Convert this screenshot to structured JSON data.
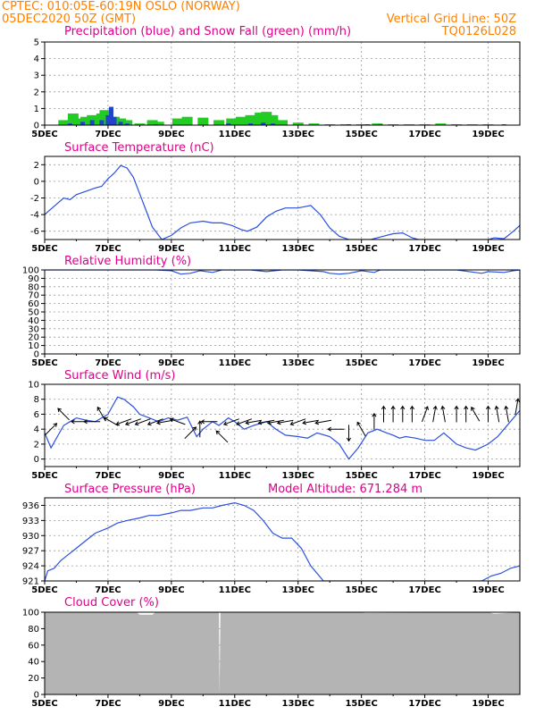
{
  "header": {
    "station": "CPTEC:  010:05E-60:19N   OSLO (NORWAY)",
    "datetime": "05DEC2020 50Z (GMT)",
    "grid_note": "Vertical Grid Line: 50Z",
    "code": "TQ0126L028"
  },
  "colors": {
    "header": "#ff8000",
    "title": "#e0008a",
    "line": "#2b4fe0",
    "snow": "#22cc22",
    "rain": "#2244cc",
    "cloud": "#b4b4b4",
    "grid": "#999999"
  },
  "chart_data": [
    {
      "id": "precip",
      "type": "bar",
      "title": "Precipitation (blue) and Snow Fall (green) (mm/h)",
      "xlim": [
        0,
        15
      ],
      "ylim": [
        0,
        5
      ],
      "yticks": [
        "0",
        "1",
        "2",
        "3",
        "4",
        "5"
      ],
      "xticks": [
        "5DEC",
        "7DEC",
        "9DEC",
        "11DEC",
        "13DEC",
        "15DEC",
        "17DEC",
        "19DEC"
      ],
      "series": [
        {
          "name": "Precipitation",
          "x": [
            0.8,
            1.2,
            1.5,
            1.8,
            2.0,
            2.1,
            2.2,
            2.4,
            2.6,
            3.5,
            5.8,
            6.5,
            6.9,
            7.2,
            9.6,
            10.2,
            10.6,
            14.5
          ],
          "values": [
            0.1,
            0.2,
            0.3,
            0.3,
            0.6,
            1.1,
            0.5,
            0.2,
            0.1,
            0.05,
            0.1,
            0.1,
            0.15,
            0.1,
            0.05,
            0.05,
            0.05,
            0.05
          ]
        },
        {
          "name": "Snow Fall",
          "x": [
            0.6,
            0.9,
            1.0,
            1.3,
            1.5,
            1.6,
            1.8,
            1.9,
            2.0,
            2.2,
            2.4,
            2.6,
            3.0,
            3.4,
            3.6,
            4.2,
            4.5,
            5.0,
            5.5,
            5.9,
            6.2,
            6.5,
            6.8,
            7.0,
            7.2,
            7.5,
            8.0,
            8.5,
            9.0,
            9.5,
            10.0,
            10.5,
            11.0,
            11.5,
            12.0,
            12.5,
            13.0,
            13.5,
            14.0
          ],
          "values": [
            0.3,
            0.7,
            0.4,
            0.5,
            0.6,
            0.3,
            0.7,
            0.9,
            0.8,
            0.5,
            0.4,
            0.3,
            0.1,
            0.3,
            0.2,
            0.4,
            0.5,
            0.45,
            0.3,
            0.4,
            0.5,
            0.6,
            0.75,
            0.8,
            0.6,
            0.3,
            0.15,
            0.1,
            0.05,
            0.05,
            0.05,
            0.1,
            0.05,
            0.05,
            0.05,
            0.1,
            0.05,
            0.05,
            0.05
          ]
        }
      ]
    },
    {
      "id": "temp",
      "type": "line",
      "title": "Surface Temperature (nC)",
      "xlim": [
        0,
        15
      ],
      "ylim": [
        -7,
        3
      ],
      "yticks": [
        "-6",
        "-4",
        "-2",
        "0",
        "2"
      ],
      "yticks_at": [
        -6,
        -4,
        -2,
        0,
        2
      ],
      "xticks": [
        "5DEC",
        "7DEC",
        "9DEC",
        "11DEC",
        "13DEC",
        "15DEC",
        "17DEC",
        "19DEC"
      ],
      "series": [
        {
          "name": "Temperature",
          "x": [
            0,
            0.3,
            0.6,
            0.8,
            1.0,
            1.3,
            1.6,
            1.8,
            2.0,
            2.2,
            2.4,
            2.6,
            2.8,
            3.0,
            3.2,
            3.4,
            3.7,
            4.0,
            4.3,
            4.6,
            5.0,
            5.3,
            5.6,
            5.9,
            6.2,
            6.4,
            6.7,
            7.0,
            7.3,
            7.6,
            8.0,
            8.4,
            8.7,
            9.0,
            9.3,
            9.6,
            9.9,
            10.3,
            10.6,
            11.0,
            11.3,
            11.6,
            11.8,
            12.0,
            12.4,
            12.8,
            13.2,
            13.6,
            14.0,
            14.2,
            14.5,
            14.8,
            15.0
          ],
          "y": [
            -4.0,
            -3.0,
            -2.0,
            -2.2,
            -1.6,
            -1.2,
            -0.8,
            -0.6,
            0.3,
            1.0,
            1.9,
            1.6,
            0.5,
            -1.5,
            -3.5,
            -5.5,
            -7.0,
            -6.5,
            -5.6,
            -5.0,
            -4.8,
            -5.0,
            -5.0,
            -5.3,
            -5.8,
            -6.0,
            -5.5,
            -4.3,
            -3.6,
            -3.2,
            -3.2,
            -2.9,
            -4.0,
            -5.6,
            -6.6,
            -7.0,
            -7.0,
            -7.0,
            -6.7,
            -6.3,
            -6.2,
            -6.8,
            -7.0,
            -7.0,
            -7.0,
            -7.0,
            -7.0,
            -7.0,
            -7.0,
            -6.8,
            -6.9,
            -6.0,
            -5.3
          ]
        }
      ]
    },
    {
      "id": "rh",
      "type": "line",
      "title": "Relative Humidity (%)",
      "xlim": [
        0,
        15
      ],
      "ylim": [
        0,
        100
      ],
      "yticks": [
        "0",
        "10",
        "20",
        "30",
        "40",
        "50",
        "60",
        "70",
        "80",
        "90",
        "100"
      ],
      "xticks": [
        "5DEC",
        "7DEC",
        "9DEC",
        "11DEC",
        "13DEC",
        "15DEC",
        "17DEC",
        "19DEC"
      ],
      "series": [
        {
          "name": "Relative Humidity",
          "x": [
            0,
            3.5,
            4.0,
            4.3,
            4.6,
            4.9,
            5.3,
            5.6,
            6.5,
            7.0,
            7.5,
            8.0,
            8.8,
            9.0,
            9.3,
            9.6,
            10.0,
            10.4,
            10.6,
            11.0,
            12.0,
            13.0,
            13.8,
            14.0,
            14.5,
            14.8,
            15.0
          ],
          "y": [
            100,
            100,
            99,
            95,
            96,
            99,
            97,
            100,
            100,
            98,
            100,
            100,
            98,
            96,
            95,
            96,
            99,
            97,
            100,
            100,
            100,
            100,
            96,
            98,
            97,
            99,
            100
          ]
        }
      ]
    },
    {
      "id": "wind",
      "type": "line",
      "title": "Surface Wind (m/s)",
      "xlim": [
        0,
        15
      ],
      "ylim": [
        -1,
        10
      ],
      "yticks": [
        "0",
        "2",
        "4",
        "6",
        "8",
        "10"
      ],
      "yticks_at": [
        0,
        2,
        4,
        6,
        8,
        10
      ],
      "xticks": [
        "5DEC",
        "7DEC",
        "9DEC",
        "11DEC",
        "13DEC",
        "15DEC",
        "17DEC",
        "19DEC"
      ],
      "series": [
        {
          "name": "Wind speed",
          "x": [
            0,
            0.2,
            0.4,
            0.6,
            0.8,
            1.0,
            1.3,
            1.6,
            2.0,
            2.3,
            2.5,
            2.8,
            3.0,
            3.3,
            3.6,
            3.9,
            4.2,
            4.5,
            4.8,
            5.0,
            5.3,
            5.5,
            5.8,
            6.0,
            6.3,
            6.6,
            7.0,
            7.3,
            7.6,
            8.0,
            8.3,
            8.6,
            9.0,
            9.3,
            9.6,
            9.9,
            10.2,
            10.5,
            10.8,
            11.0,
            11.2,
            11.4,
            11.7,
            12.0,
            12.3,
            12.6,
            13.0,
            13.3,
            13.6,
            14.0,
            14.3,
            14.5,
            14.7,
            15.0
          ],
          "y": [
            3.5,
            1.5,
            3.0,
            4.5,
            5.0,
            5.5,
            5.2,
            5.0,
            6.0,
            8.3,
            8.0,
            7.0,
            6.0,
            5.5,
            5.0,
            5.5,
            5.2,
            5.6,
            3.0,
            4.0,
            5.0,
            4.5,
            5.5,
            5.0,
            4.0,
            4.5,
            5.0,
            4.0,
            3.2,
            3.0,
            2.8,
            3.5,
            3.0,
            2.0,
            0.0,
            1.5,
            3.5,
            4.0,
            3.5,
            3.2,
            2.8,
            3.0,
            2.8,
            2.5,
            2.5,
            3.5,
            2.0,
            1.5,
            1.2,
            2.0,
            3.0,
            4.0,
            5.0,
            6.5
          ]
        },
        {
          "name": "Wind direction",
          "x": [
            0.2,
            0.6,
            1.1,
            1.5,
            1.8,
            2.1,
            2.5,
            2.8,
            3.1,
            3.5,
            3.8,
            4.2,
            4.6,
            4.9,
            5.2,
            5.6,
            5.9,
            6.3,
            6.6,
            7.0,
            7.3,
            7.6,
            8.0,
            8.4,
            8.8,
            9.2,
            9.6,
            10.0,
            10.4,
            10.7,
            11.0,
            11.3,
            11.6,
            12.0,
            12.3,
            12.6,
            13.0,
            13.3,
            13.6,
            14.0,
            14.3,
            14.6,
            14.9
          ],
          "y": [
            4,
            6,
            5,
            5,
            6,
            5,
            5,
            5,
            5,
            5,
            5,
            5,
            3.5,
            4,
            5,
            3,
            5,
            5,
            5,
            5,
            5,
            5,
            5,
            5,
            5,
            4,
            3.5,
            4,
            5,
            6,
            6,
            6,
            6,
            6,
            6,
            6,
            6,
            6,
            6,
            6,
            6,
            6,
            7
          ],
          "bearing": [
            -45,
            -135,
            180,
            180,
            -120,
            -150,
            160,
            160,
            160,
            160,
            170,
            -160,
            -45,
            -90,
            180,
            -135,
            160,
            160,
            170,
            170,
            170,
            170,
            160,
            170,
            170,
            180,
            90,
            -120,
            -90,
            -90,
            -90,
            -90,
            -90,
            -70,
            -80,
            -100,
            -90,
            -90,
            -120,
            -90,
            -100,
            -100,
            -80
          ]
        }
      ]
    },
    {
      "id": "pres",
      "type": "line",
      "title": "Surface Pressure (hPa)",
      "annotation": "Model Altitude: 671.284 m",
      "xlim": [
        0,
        15
      ],
      "ylim": [
        921,
        937.5
      ],
      "yticks": [
        "921",
        "924",
        "927",
        "930",
        "933",
        "936"
      ],
      "yticks_at": [
        921,
        924,
        927,
        930,
        933,
        936
      ],
      "xticks": [
        "5DEC",
        "7DEC",
        "9DEC",
        "11DEC",
        "13DEC",
        "15DEC",
        "17DEC",
        "19DEC"
      ],
      "series": [
        {
          "name": "Pressure",
          "x": [
            0,
            0.1,
            0.3,
            0.5,
            0.7,
            1.0,
            1.3,
            1.6,
            2.0,
            2.3,
            2.6,
            3.0,
            3.3,
            3.6,
            4.0,
            4.3,
            4.6,
            5.0,
            5.3,
            5.6,
            6.0,
            6.3,
            6.6,
            6.9,
            7.2,
            7.5,
            7.8,
            8.1,
            8.4,
            8.8,
            13.8,
            14.1,
            14.4,
            14.7,
            15.0
          ],
          "y": [
            921,
            923,
            923.5,
            925,
            926,
            927.5,
            929,
            930.5,
            931.5,
            932.5,
            933,
            933.5,
            934,
            934,
            934.5,
            935,
            935,
            935.5,
            935.5,
            936,
            936.5,
            936,
            935,
            933,
            930.5,
            929.5,
            929.5,
            927.5,
            924,
            921,
            921,
            922,
            922.5,
            923.5,
            924
          ]
        }
      ]
    },
    {
      "id": "cloud",
      "type": "area",
      "title": "Cloud Cover (%)",
      "xlim": [
        0,
        15
      ],
      "ylim": [
        0,
        100
      ],
      "yticks": [
        "0",
        "20",
        "40",
        "60",
        "80",
        "100"
      ],
      "yticks_at": [
        0,
        20,
        40,
        60,
        80,
        100
      ],
      "xticks": [
        "5DEC",
        "7DEC",
        "9DEC",
        "11DEC",
        "13DEC",
        "15DEC",
        "17DEC",
        "19DEC"
      ],
      "series": [
        {
          "name": "Cloud Cover",
          "x": [
            0,
            2.9,
            3.0,
            3.4,
            3.5,
            5.5,
            5.52,
            5.55,
            10.0,
            10.1,
            14.0,
            14.2,
            15.0
          ],
          "y": [
            100,
            100,
            97,
            97,
            100,
            100,
            0,
            100,
            100,
            99,
            100,
            98,
            100
          ]
        }
      ]
    }
  ]
}
